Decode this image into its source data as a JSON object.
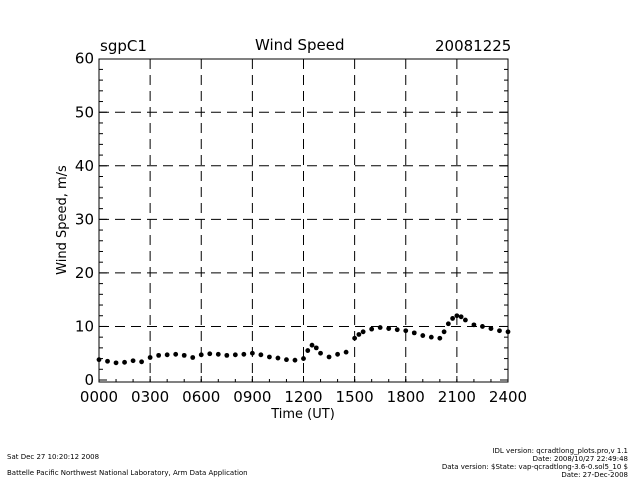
{
  "header": {
    "site": "sgpC1",
    "title": "Wind Speed",
    "date": "20081225"
  },
  "footer": {
    "left_line1": "Sat Dec 27 10:20:12 2008",
    "left_line2": "Battelle Pacific Northwest National Laboratory, Arm Data Application",
    "right_line1": "IDL version: qcradtlong_plots.pro,v 1.1",
    "right_line2": "Date: 2008/10/27 22:49:48",
    "right_line3": "Data version: $State: vap-qcradtlong-3.6-0.sol5_10 $",
    "right_line4": "Date: 27-Dec-2008"
  },
  "chart_data": {
    "type": "scatter",
    "title": "Wind Speed",
    "xlabel": "Time (UT)",
    "ylabel": "Wind Speed, m/s",
    "xlim": [
      0,
      24
    ],
    "ylim": [
      0,
      60
    ],
    "x_ticks": [
      "0000",
      "0300",
      "0600",
      "0900",
      "1200",
      "1500",
      "1800",
      "2100",
      "2400"
    ],
    "y_ticks": [
      "0",
      "10",
      "20",
      "30",
      "40",
      "50",
      "60"
    ],
    "grid": "dashed",
    "marker_color": "#000000",
    "series": [
      {
        "x": [
          0.0,
          0.5,
          1.0,
          1.5,
          2.0,
          2.5,
          3.0,
          3.5,
          4.0,
          4.5,
          5.0,
          5.5,
          6.0,
          6.5,
          7.0,
          7.5,
          8.0,
          8.5,
          9.0,
          9.5,
          10.0,
          10.5,
          11.0,
          11.5,
          12.0,
          12.25,
          12.5,
          12.75,
          13.0,
          13.5,
          14.0,
          14.5,
          15.0,
          15.25,
          15.5,
          16.0,
          16.5,
          17.0,
          17.5,
          18.0,
          18.5,
          19.0,
          19.5,
          20.0,
          20.25,
          20.5,
          20.75,
          21.0,
          21.25,
          21.5,
          22.0,
          22.5,
          23.0,
          23.5,
          24.0
        ],
        "y": [
          3.8,
          3.5,
          3.2,
          3.3,
          3.6,
          3.4,
          4.2,
          4.6,
          4.7,
          4.8,
          4.6,
          4.2,
          4.7,
          4.9,
          4.8,
          4.6,
          4.7,
          4.8,
          5.0,
          4.7,
          4.3,
          4.1,
          3.8,
          3.7,
          4.0,
          5.5,
          6.5,
          6.0,
          5.0,
          4.3,
          4.8,
          5.2,
          7.8,
          8.5,
          9.0,
          9.5,
          9.8,
          9.6,
          9.4,
          9.2,
          8.8,
          8.3,
          8.0,
          7.8,
          9.0,
          10.5,
          11.5,
          12.0,
          11.8,
          11.2,
          10.3,
          10.0,
          9.6,
          9.2,
          9.0
        ]
      }
    ]
  }
}
